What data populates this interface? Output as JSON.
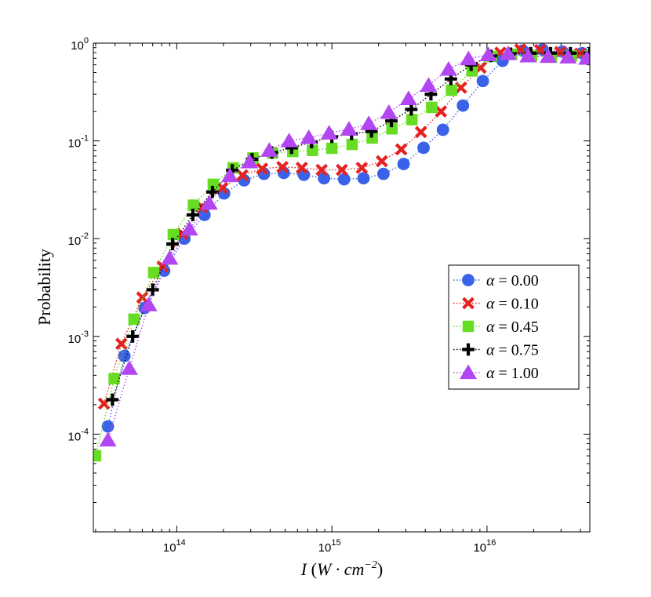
{
  "chart_data": {
    "type": "scatter",
    "title": "",
    "xlabel": "I (W · cm⁻²)",
    "xlabel_parts": {
      "var": "I",
      "open": "(",
      "unit": "W · cm",
      "exp": "−2",
      "close": ")"
    },
    "ylabel": "Probability",
    "x_scale": "log",
    "y_scale": "log",
    "xlim": [
      29000000000000.0,
      4.6e+16
    ],
    "ylim": [
      1e-05,
      1
    ],
    "x_ticks": [
      {
        "value": 100000000000000.0,
        "base": "10",
        "exp": "14"
      },
      {
        "value": 1000000000000000.0,
        "base": "10",
        "exp": "15"
      },
      {
        "value": 1e+16,
        "base": "10",
        "exp": "16"
      }
    ],
    "y_ticks": [
      {
        "value": 1,
        "base": "10",
        "exp": "0"
      },
      {
        "value": 0.1,
        "base": "10",
        "exp": "-1"
      },
      {
        "value": 0.01,
        "base": "10",
        "exp": "-2"
      },
      {
        "value": 0.001,
        "base": "10",
        "exp": "-3"
      },
      {
        "value": 0.0001,
        "base": "10",
        "exp": "-4"
      }
    ],
    "legend_position": "center-right",
    "series": [
      {
        "name": "α = 0.00",
        "marker": "circle",
        "color": "#3a62e8",
        "points": [
          [
            36000000000000.0,
            0.00012
          ],
          [
            46000000000000.0,
            0.00063
          ],
          [
            62000000000000.0,
            0.00195
          ],
          [
            83000000000000.0,
            0.0047
          ],
          [
            112000000000000.0,
            0.01
          ],
          [
            151000000000000.0,
            0.0175
          ],
          [
            202000000000000.0,
            0.029
          ],
          [
            272000000000000.0,
            0.0395
          ],
          [
            365000000000000.0,
            0.046
          ],
          [
            490000000000000.0,
            0.047
          ],
          [
            660000000000000.0,
            0.045
          ],
          [
            890000000000000.0,
            0.0415
          ],
          [
            1200000000000000.0,
            0.0405
          ],
          [
            1600000000000000.0,
            0.0415
          ],
          [
            2150000000000000.0,
            0.046
          ],
          [
            2900000000000000.0,
            0.058
          ],
          [
            3900000000000000.0,
            0.085
          ],
          [
            5200000000000000.0,
            0.13
          ],
          [
            7000000000000000.0,
            0.23
          ],
          [
            9400000000000000.0,
            0.41
          ],
          [
            1.26e+16,
            0.66
          ],
          [
            1.7e+16,
            0.84
          ],
          [
            2.28e+16,
            0.86
          ],
          [
            3.06e+16,
            0.82
          ],
          [
            4.1e+16,
            0.79
          ]
        ]
      },
      {
        "name": "α = 0.10",
        "marker": "x",
        "color": "#e52222",
        "points": [
          [
            34000000000000.0,
            0.000205
          ],
          [
            44000000000000.0,
            0.00084
          ],
          [
            60000000000000.0,
            0.0025
          ],
          [
            81000000000000.0,
            0.0052
          ],
          [
            109000000000000.0,
            0.0112
          ],
          [
            146000000000000.0,
            0.021
          ],
          [
            197000000000000.0,
            0.033
          ],
          [
            265000000000000.0,
            0.0445
          ],
          [
            355000000000000.0,
            0.052
          ],
          [
            480000000000000.0,
            0.054
          ],
          [
            640000000000000.0,
            0.053
          ],
          [
            860000000000000.0,
            0.0505
          ],
          [
            1160000000000000.0,
            0.0505
          ],
          [
            1560000000000000.0,
            0.053
          ],
          [
            2100000000000000.0,
            0.062
          ],
          [
            2800000000000000.0,
            0.082
          ],
          [
            3750000000000000.0,
            0.123
          ],
          [
            5050000000000000.0,
            0.2
          ],
          [
            6800000000000000.0,
            0.35
          ],
          [
            9100000000000000.0,
            0.56
          ],
          [
            1.22e+16,
            0.8
          ],
          [
            1.64e+16,
            0.86
          ],
          [
            2.2e+16,
            0.85
          ],
          [
            2.96e+16,
            0.81
          ],
          [
            3.98e+16,
            0.78
          ]
        ]
      },
      {
        "name": "α = 0.45",
        "marker": "square",
        "color": "#66dd22",
        "points": [
          [
            30000000000000.0,
            6e-05
          ],
          [
            39500000000000.0,
            0.00037
          ],
          [
            53000000000000.0,
            0.0015
          ],
          [
            71000000000000.0,
            0.0045
          ],
          [
            95000000000000.0,
            0.011
          ],
          [
            128000000000000.0,
            0.022
          ],
          [
            172000000000000.0,
            0.036
          ],
          [
            231000000000000.0,
            0.053
          ],
          [
            310000000000000.0,
            0.067
          ],
          [
            415000000000000.0,
            0.075
          ],
          [
            560000000000000.0,
            0.078
          ],
          [
            750000000000000.0,
            0.08
          ],
          [
            1000000000000000.0,
            0.084
          ],
          [
            1350000000000000.0,
            0.092
          ],
          [
            1820000000000000.0,
            0.107
          ],
          [
            2440000000000000.0,
            0.133
          ],
          [
            3280000000000000.0,
            0.165
          ],
          [
            4400000000000000.0,
            0.22
          ],
          [
            5900000000000000.0,
            0.33
          ],
          [
            8000000000000000.0,
            0.52
          ],
          [
            1.07e+16,
            0.73
          ],
          [
            1.44e+16,
            0.77
          ],
          [
            1.94e+16,
            0.74
          ],
          [
            2.6e+16,
            0.72
          ],
          [
            3.5e+16,
            0.74
          ],
          [
            4.6e+16,
            0.74
          ]
        ]
      },
      {
        "name": "α = 0.75",
        "marker": "plus",
        "color": "#000000",
        "points": [
          [
            38500000000000.0,
            0.000225
          ],
          [
            52000000000000.0,
            0.001
          ],
          [
            70000000000000.0,
            0.003
          ],
          [
            94000000000000.0,
            0.0088
          ],
          [
            127000000000000.0,
            0.0175
          ],
          [
            170000000000000.0,
            0.03
          ],
          [
            228000000000000.0,
            0.05
          ],
          [
            306000000000000.0,
            0.065
          ],
          [
            410000000000000.0,
            0.076
          ],
          [
            550000000000000.0,
            0.085
          ],
          [
            740000000000000.0,
            0.097
          ],
          [
            1000000000000000.0,
            0.11
          ],
          [
            1340000000000000.0,
            0.118
          ],
          [
            1800000000000000.0,
            0.125
          ],
          [
            2420000000000000.0,
            0.16
          ],
          [
            3250000000000000.0,
            0.21
          ],
          [
            4350000000000000.0,
            0.3
          ],
          [
            5850000000000000.0,
            0.43
          ],
          [
            7900000000000000.0,
            0.6
          ],
          [
            1.06e+16,
            0.74
          ],
          [
            1.42e+16,
            0.78
          ],
          [
            1.91e+16,
            0.79
          ],
          [
            2.57e+16,
            0.79
          ],
          [
            3.45e+16,
            0.79
          ],
          [
            4.6e+16,
            0.79
          ]
        ]
      },
      {
        "name": "α = 1.00",
        "marker": "triangle",
        "color": "#b246f2",
        "points": [
          [
            36000000000000.0,
            8.7e-05
          ],
          [
            49500000000000.0,
            0.00047
          ],
          [
            66000000000000.0,
            0.0021
          ],
          [
            90000000000000.0,
            0.0063
          ],
          [
            121000000000000.0,
            0.0125
          ],
          [
            162000000000000.0,
            0.023
          ],
          [
            220000000000000.0,
            0.044
          ],
          [
            295000000000000.0,
            0.061
          ],
          [
            395000000000000.0,
            0.08
          ],
          [
            530000000000000.0,
            0.1
          ],
          [
            710000000000000.0,
            0.108
          ],
          [
            960000000000000.0,
            0.12
          ],
          [
            1290000000000000.0,
            0.132
          ],
          [
            1730000000000000.0,
            0.15
          ],
          [
            2330000000000000.0,
            0.195
          ],
          [
            3120000000000000.0,
            0.27
          ],
          [
            4200000000000000.0,
            0.37
          ],
          [
            5650000000000000.0,
            0.54
          ],
          [
            7600000000000000.0,
            0.69
          ],
          [
            1.02e+16,
            0.76
          ],
          [
            1.37e+16,
            0.78
          ],
          [
            1.84e+16,
            0.74
          ],
          [
            2.48e+16,
            0.73
          ],
          [
            3.33e+16,
            0.72
          ],
          [
            4.4e+16,
            0.7
          ]
        ]
      }
    ]
  }
}
